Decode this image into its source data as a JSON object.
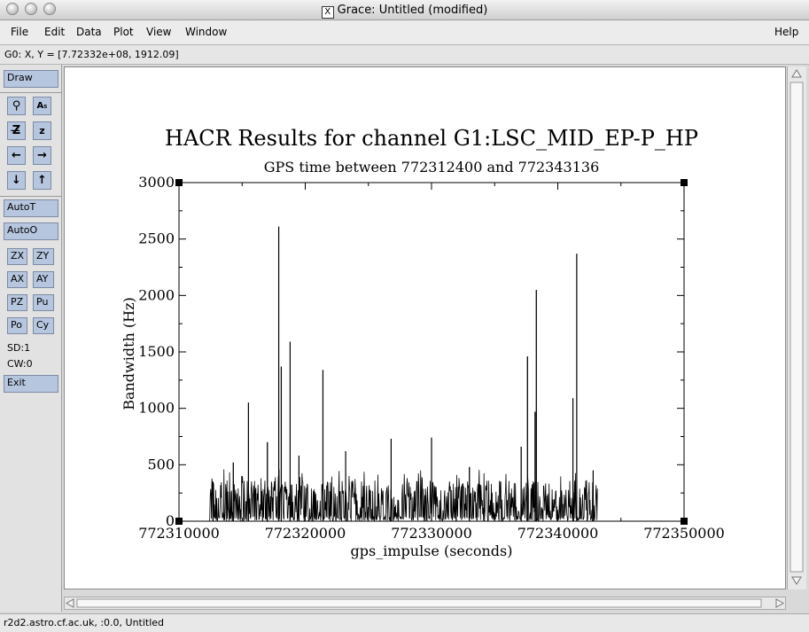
{
  "window": {
    "title": "Grace: Untitled (modified)"
  },
  "menu": {
    "items": [
      "File",
      "Edit",
      "Data",
      "Plot",
      "View",
      "Window"
    ],
    "help": "Help"
  },
  "locator": "G0: X, Y = [7.72332e+08, 1912.09]",
  "toolbar": {
    "draw": "Draw",
    "icon_rows": [
      [
        "magnifier-icon",
        "text-icon"
      ],
      [
        "zoom-z-icon",
        "zoom-small-z-icon"
      ],
      [
        "arrow-left-icon",
        "arrow-right-icon"
      ],
      [
        "arrow-down-icon",
        "arrow-up-icon"
      ]
    ],
    "autot": "AutoT",
    "autoo": "AutoO",
    "grid_buttons": [
      [
        "ZX",
        "ZY"
      ],
      [
        "AX",
        "AY"
      ],
      [
        "PZ",
        "Pu"
      ],
      [
        "Po",
        "Cy"
      ]
    ],
    "sd": "SD:1",
    "cw": "CW:0",
    "exit": "Exit"
  },
  "statusbar": "r2d2.astro.cf.ac.uk, :0.0, Untitled",
  "chart_data": {
    "type": "line",
    "title": "HACR Results for channel G1:LSC_MID_EP-P_HP",
    "subtitle": "GPS time between 772312400 and 772343136",
    "xlabel": "gps_impulse (seconds)",
    "ylabel": "Bandwidth (Hz)",
    "xlim": [
      772310000,
      772350000
    ],
    "ylim": [
      0,
      3000
    ],
    "x_ticks": [
      772310000,
      772320000,
      772330000,
      772340000,
      772350000
    ],
    "y_ticks": [
      0,
      500,
      1000,
      1500,
      2000,
      2500,
      3000
    ],
    "x_range_data": [
      772312400,
      772343136
    ],
    "spikes": [
      {
        "x": 772312700,
        "y": 350
      },
      {
        "x": 772314300,
        "y": 520
      },
      {
        "x": 772315500,
        "y": 1050
      },
      {
        "x": 772317000,
        "y": 700
      },
      {
        "x": 772317900,
        "y": 2610
      },
      {
        "x": 772318100,
        "y": 1370
      },
      {
        "x": 772318800,
        "y": 1590
      },
      {
        "x": 772319500,
        "y": 580
      },
      {
        "x": 772321400,
        "y": 1340
      },
      {
        "x": 772323200,
        "y": 620
      },
      {
        "x": 772326800,
        "y": 730
      },
      {
        "x": 772330000,
        "y": 740
      },
      {
        "x": 772333000,
        "y": 480
      },
      {
        "x": 772337100,
        "y": 660
      },
      {
        "x": 772337600,
        "y": 1460
      },
      {
        "x": 772338300,
        "y": 2050
      },
      {
        "x": 772338200,
        "y": 970
      },
      {
        "x": 772341200,
        "y": 1090
      },
      {
        "x": 772341500,
        "y": 2370
      },
      {
        "x": 772342800,
        "y": 450
      }
    ],
    "baseline_level": 250,
    "grid": false
  }
}
